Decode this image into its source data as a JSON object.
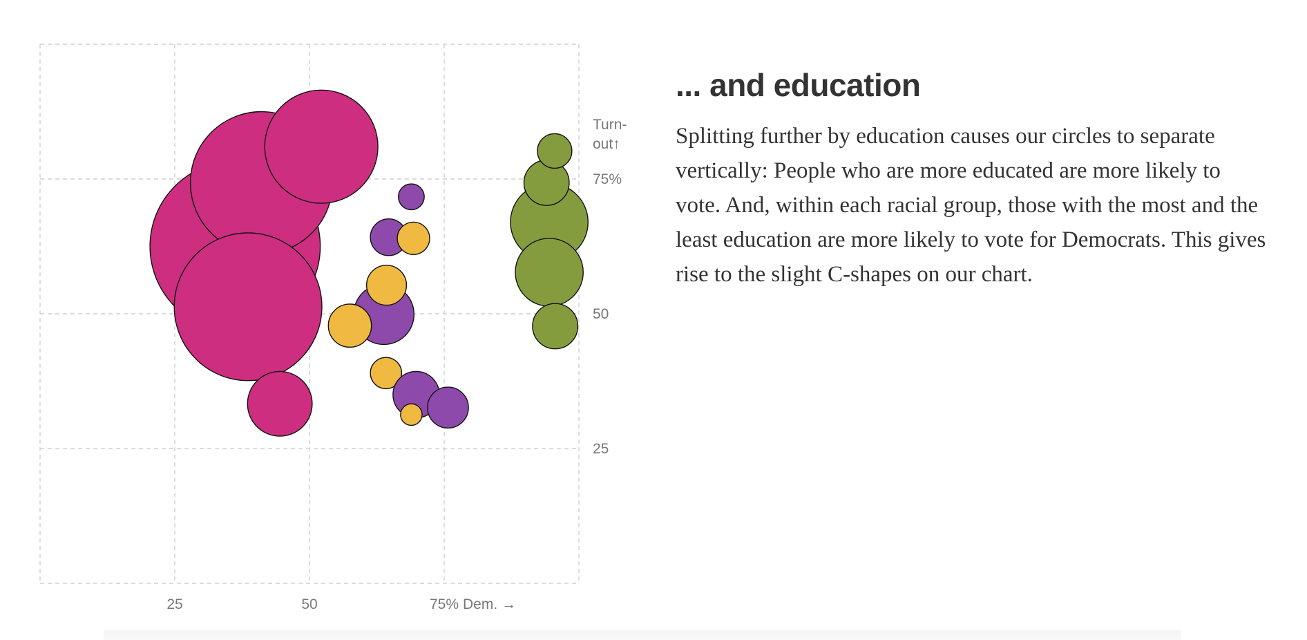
{
  "headline": "... and education",
  "body": "Splitting further by education causes our circles to separate vertically: People who are more educated are more likely to vote. And, within each racial group, those with the most and the least education are more likely to vote for Democrats. This gives rise to the slight C-shapes on our chart.",
  "chart_data": {
    "type": "scatter",
    "title": "",
    "xlabel": "Dem. →",
    "ylabel": "Turn-out↑",
    "xlim": [
      0,
      100
    ],
    "ylim": [
      0,
      100
    ],
    "grid": true,
    "x_ticks": [
      {
        "value": 25,
        "label": "25"
      },
      {
        "value": 50,
        "label": "50"
      },
      {
        "value": 75,
        "label": "75%"
      }
    ],
    "y_ticks": [
      {
        "value": 25,
        "label": "25"
      },
      {
        "value": 50,
        "label": "50"
      },
      {
        "value": 75,
        "label": "75%"
      }
    ],
    "y_axis_title_lines": [
      "Turn-",
      "out↑"
    ],
    "x_axis_title": "Dem. →",
    "colors": {
      "magenta": "#cd2e7f",
      "purple": "#8e4aaa",
      "yellow": "#f0b942",
      "green": "#859c3e"
    },
    "points": [
      {
        "x": 36.2,
        "y": 62.5,
        "size": 15.8,
        "color": "magenta"
      },
      {
        "x": 41.1,
        "y": 74.3,
        "size": 13.2,
        "color": "magenta"
      },
      {
        "x": 52.2,
        "y": 81.0,
        "size": 10.5,
        "color": "magenta"
      },
      {
        "x": 38.6,
        "y": 51.3,
        "size": 13.7,
        "color": "magenta"
      },
      {
        "x": 44.5,
        "y": 33.3,
        "size": 6.0,
        "color": "magenta"
      },
      {
        "x": 63.8,
        "y": 49.9,
        "size": 5.6,
        "color": "purple"
      },
      {
        "x": 64.2,
        "y": 39.0,
        "size": 2.9,
        "color": "yellow"
      },
      {
        "x": 69.8,
        "y": 35.0,
        "size": 4.3,
        "color": "purple"
      },
      {
        "x": 75.7,
        "y": 32.6,
        "size": 3.8,
        "color": "purple"
      },
      {
        "x": 68.9,
        "y": 31.3,
        "size": 2.0,
        "color": "yellow"
      },
      {
        "x": 64.3,
        "y": 55.3,
        "size": 3.7,
        "color": "yellow"
      },
      {
        "x": 57.5,
        "y": 47.8,
        "size": 4.0,
        "color": "yellow"
      },
      {
        "x": 64.7,
        "y": 64.2,
        "size": 3.4,
        "color": "purple"
      },
      {
        "x": 69.3,
        "y": 64.0,
        "size": 3.0,
        "color": "yellow"
      },
      {
        "x": 68.9,
        "y": 71.7,
        "size": 2.4,
        "color": "purple"
      },
      {
        "x": 94.5,
        "y": 67.0,
        "size": 7.2,
        "color": "green"
      },
      {
        "x": 94.5,
        "y": 57.7,
        "size": 6.3,
        "color": "green"
      },
      {
        "x": 95.6,
        "y": 47.7,
        "size": 4.2,
        "color": "green"
      },
      {
        "x": 94.0,
        "y": 74.3,
        "size": 4.2,
        "color": "green"
      },
      {
        "x": 95.5,
        "y": 80.2,
        "size": 3.2,
        "color": "green"
      }
    ]
  }
}
